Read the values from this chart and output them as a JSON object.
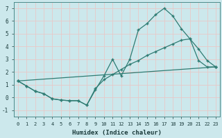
{
  "title": "",
  "xlabel": "Humidex (Indice chaleur)",
  "ylabel": "",
  "bg_color": "#cce8ec",
  "line_color": "#2e7b72",
  "grid_color": "#e8c8c8",
  "xlim": [
    -0.5,
    23.5
  ],
  "ylim": [
    -1.5,
    7.5
  ],
  "xticks": [
    0,
    1,
    2,
    3,
    4,
    5,
    6,
    7,
    8,
    9,
    10,
    11,
    12,
    13,
    14,
    15,
    16,
    17,
    18,
    19,
    20,
    21,
    22,
    23
  ],
  "yticks": [
    -1,
    0,
    1,
    2,
    3,
    4,
    5,
    6,
    7
  ],
  "line1_x": [
    0,
    1,
    2,
    3,
    4,
    5,
    6,
    7,
    8,
    9,
    10,
    11,
    12,
    13,
    14,
    15,
    16,
    17,
    18,
    19,
    20,
    21,
    22,
    23
  ],
  "line1_y": [
    1.3,
    0.9,
    0.5,
    0.3,
    -0.1,
    -0.2,
    -0.25,
    -0.25,
    -0.6,
    0.6,
    1.7,
    3.0,
    1.7,
    3.0,
    5.3,
    5.8,
    6.5,
    7.0,
    6.4,
    5.4,
    4.6,
    3.8,
    2.9,
    2.4
  ],
  "line2_x": [
    0,
    1,
    2,
    3,
    4,
    5,
    6,
    7,
    8,
    9,
    10,
    11,
    12,
    13,
    14,
    15,
    16,
    17,
    18,
    19,
    20,
    21,
    22,
    23
  ],
  "line2_y": [
    1.3,
    0.9,
    0.5,
    0.3,
    -0.1,
    -0.2,
    -0.25,
    -0.25,
    -0.6,
    0.7,
    1.4,
    1.8,
    2.2,
    2.6,
    2.9,
    3.3,
    3.6,
    3.9,
    4.2,
    4.5,
    4.6,
    2.9,
    2.4,
    2.4
  ],
  "line3_x": [
    0,
    23
  ],
  "line3_y": [
    1.3,
    2.4
  ]
}
